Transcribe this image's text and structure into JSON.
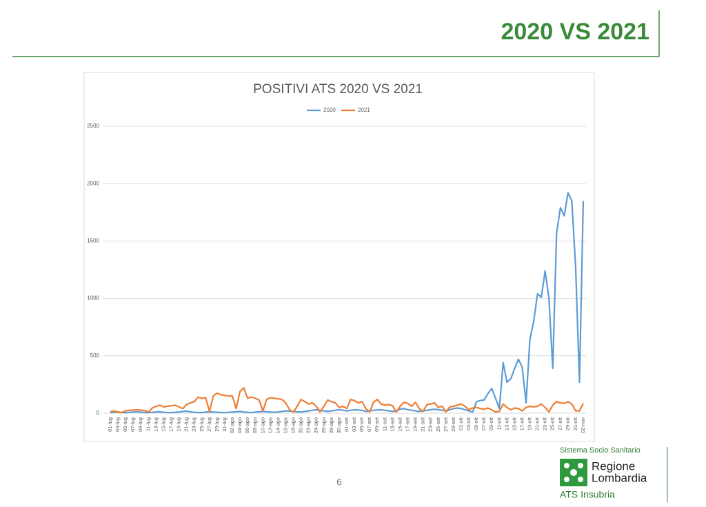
{
  "header": {
    "title": "2020 VS 2021"
  },
  "chart_data": {
    "type": "line",
    "title": "POSITIVI ATS 2020 VS 2021",
    "categories": [
      "01-lug",
      null,
      "03-lug",
      null,
      "05-lug",
      null,
      "07-lug",
      null,
      "09-lug",
      null,
      "11-lug",
      null,
      "13-lug",
      null,
      "15-lug",
      null,
      "17-lug",
      null,
      "19-lug",
      null,
      "21-lug",
      null,
      "23-lug",
      null,
      "25-lug",
      null,
      "27-lug",
      null,
      "29-lug",
      null,
      "31-lug",
      null,
      "02-ago",
      null,
      "04-ago",
      null,
      "06-ago",
      null,
      "08-ago",
      null,
      "10-ago",
      null,
      "12-ago",
      null,
      "14-ago",
      null,
      "16-ago",
      null,
      "18-ago",
      null,
      "20-ago",
      null,
      "22-ago",
      null,
      "24-ago",
      null,
      "26-ago",
      null,
      "28-ago",
      null,
      "30-ago",
      null,
      "01-set",
      null,
      "03-set",
      null,
      "05-set",
      null,
      "07-set",
      null,
      "09-set",
      null,
      "11-set",
      null,
      "13-set",
      null,
      "15-set",
      null,
      "17-set",
      null,
      "19-set",
      null,
      "21-set",
      null,
      "23-set",
      null,
      "25-set",
      null,
      "27-set",
      null,
      "29-set",
      null,
      "01-ott",
      null,
      "03-ott",
      null,
      "05-ott",
      null,
      "07-ott",
      null,
      "09-ott",
      null,
      "11-ott",
      null,
      "13-ott",
      null,
      "15-ott",
      null,
      "17-ott",
      null,
      "19-ott",
      null,
      "21-ott",
      null,
      "23-ott",
      null,
      "25-ott",
      null,
      "27-ott",
      null,
      "29-ott",
      null,
      "31-ott",
      null,
      "02-nov"
    ],
    "series": [
      {
        "name": "2020",
        "color": "#5b9bd5",
        "values": [
          5,
          8,
          10,
          6,
          4,
          8,
          10,
          12,
          10,
          6,
          5,
          8,
          10,
          12,
          8,
          6,
          5,
          8,
          10,
          15,
          18,
          12,
          8,
          6,
          5,
          10,
          12,
          10,
          8,
          6,
          5,
          8,
          10,
          12,
          15,
          10,
          8,
          5,
          10,
          12,
          15,
          12,
          10,
          8,
          10,
          15,
          20,
          18,
          15,
          12,
          10,
          15,
          20,
          25,
          30,
          25,
          20,
          15,
          20,
          25,
          30,
          25,
          20,
          25,
          30,
          28,
          25,
          15,
          20,
          25,
          28,
          30,
          25,
          20,
          15,
          20,
          35,
          40,
          30,
          25,
          20,
          15,
          20,
          25,
          30,
          35,
          30,
          25,
          20,
          30,
          40,
          45,
          40,
          30,
          20,
          10,
          100,
          110,
          115,
          170,
          215,
          130,
          40,
          440,
          270,
          300,
          390,
          470,
          400,
          90,
          640,
          800,
          1040,
          1010,
          1240,
          1000,
          390,
          1570,
          1790,
          1720,
          1920,
          1850,
          1270,
          270,
          1850
        ]
      },
      {
        "name": "2021",
        "color": "#ed7d31",
        "values": [
          15,
          18,
          12,
          5,
          20,
          25,
          28,
          30,
          28,
          22,
          10,
          45,
          60,
          70,
          55,
          60,
          65,
          70,
          55,
          40,
          75,
          90,
          100,
          140,
          130,
          135,
          15,
          150,
          175,
          160,
          155,
          150,
          150,
          40,
          190,
          220,
          130,
          140,
          130,
          115,
          20,
          120,
          135,
          130,
          125,
          120,
          90,
          30,
          10,
          60,
          120,
          100,
          80,
          90,
          60,
          10,
          60,
          115,
          100,
          90,
          50,
          60,
          40,
          120,
          110,
          90,
          100,
          40,
          10,
          95,
          120,
          80,
          70,
          75,
          65,
          10,
          60,
          95,
          85,
          60,
          95,
          40,
          15,
          75,
          80,
          90,
          50,
          60,
          10,
          55,
          60,
          70,
          80,
          60,
          30,
          45,
          50,
          40,
          35,
          45,
          30,
          10,
          15,
          80,
          50,
          30,
          45,
          40,
          20,
          50,
          60,
          55,
          60,
          80,
          50,
          10,
          70,
          100,
          90,
          85,
          100,
          80,
          20,
          20,
          85
        ]
      }
    ],
    "ylim": [
      0,
      2500
    ],
    "yticks": [
      0,
      500,
      1000,
      1500,
      2000,
      2500
    ],
    "grid": true,
    "legend": "top"
  },
  "footer": {
    "page_number": "6",
    "logo": {
      "system": "Sistema Socio Sanitario",
      "region_line1": "Regione",
      "region_line2": "Lombardia",
      "agency": "ATS Insubria"
    }
  }
}
